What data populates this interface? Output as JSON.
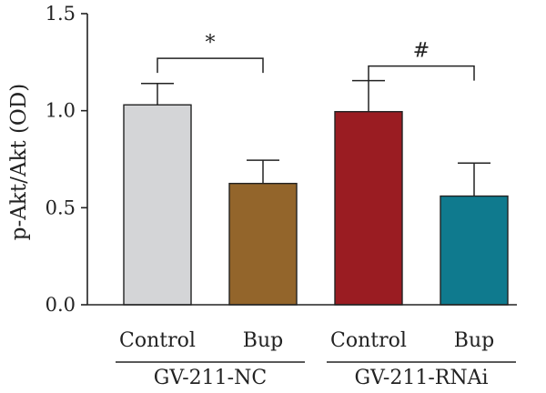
{
  "chart_data": {
    "type": "bar",
    "title": "",
    "xlabel": "",
    "ylabel": "p-Akt/Akt (OD)",
    "ylim": [
      0,
      1.5
    ],
    "yticks": [
      "0.0",
      "0.5",
      "1.0",
      "1.5"
    ],
    "categories": [
      "Control",
      "Bup",
      "Control",
      "Bup"
    ],
    "groups": [
      {
        "label": "GV-211-NC",
        "categories": [
          0,
          1
        ]
      },
      {
        "label": "GV-211-RNAi",
        "categories": [
          2,
          3
        ]
      }
    ],
    "values": [
      1.03,
      0.625,
      0.995,
      0.56
    ],
    "errors": [
      0.11,
      0.12,
      0.16,
      0.17
    ],
    "colors": [
      "#d4d5d7",
      "#93652b",
      "#9a1c22",
      "#0f7a8e"
    ],
    "significance": [
      {
        "label": "*",
        "between": [
          0,
          1
        ],
        "y": 1.27
      },
      {
        "label": "#",
        "between": [
          2,
          3
        ],
        "y": 1.23
      }
    ],
    "grid": false,
    "legend": "none"
  }
}
